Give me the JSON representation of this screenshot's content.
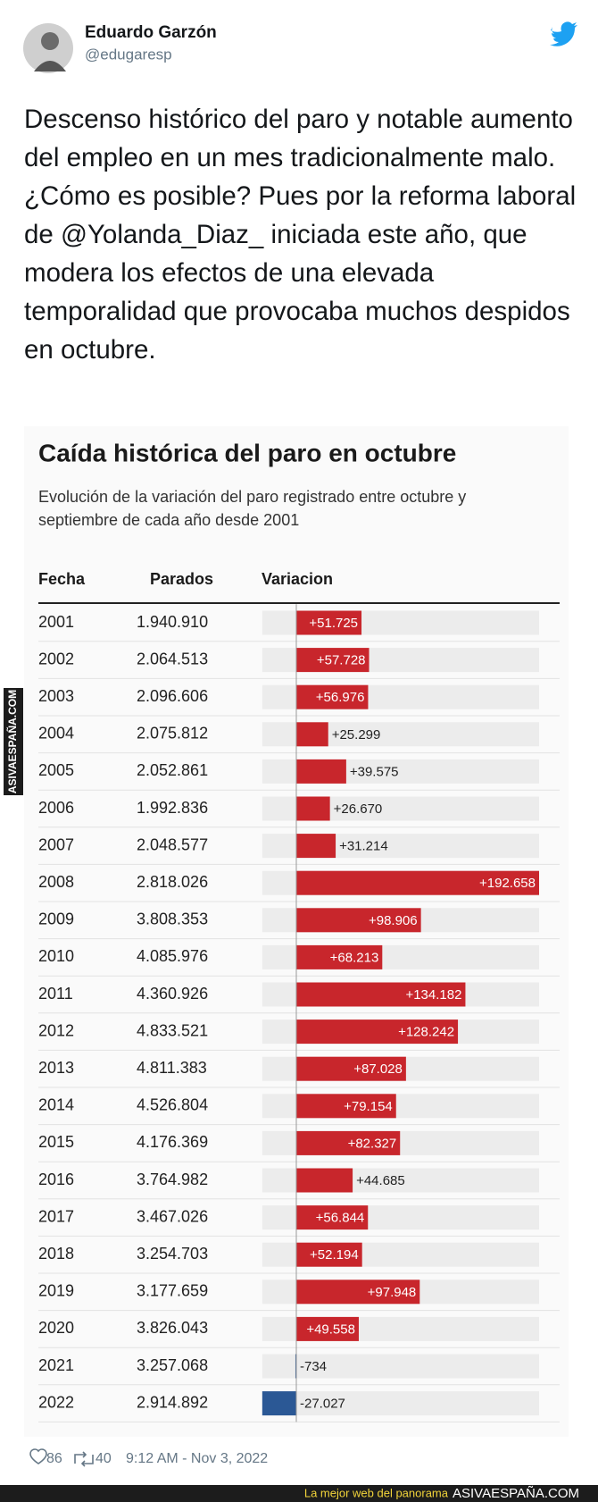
{
  "tweet": {
    "author": "Eduardo Garzón",
    "handle": "@edugaresp",
    "text": "Descenso histórico del paro y notable aumento del empleo en un mes tradicionalmente malo. ¿Cómo es posible? Pues por la reforma laboral de @Yolanda_Diaz_ iniciada este año, que modera los efectos de una elevada temporalidad que provocaba muchos despidos en octubre.",
    "likes": "86",
    "retweets": "40",
    "timestamp": "9:12 AM - Nov 3, 2022"
  },
  "chart_data": {
    "type": "table-bar",
    "title": "Caída histórica del paro en octubre",
    "subtitle_lines": [
      "Evolución de la variación del paro registrado entre octubre y",
      "septiembre de cada año desde 2001"
    ],
    "columns": [
      "Fecha",
      "Parados",
      "Variacion"
    ],
    "categories": [
      "2001",
      "2002",
      "2003",
      "2004",
      "2005",
      "2006",
      "2007",
      "2008",
      "2009",
      "2010",
      "2011",
      "2012",
      "2013",
      "2014",
      "2015",
      "2016",
      "2017",
      "2018",
      "2019",
      "2020",
      "2021",
      "2022"
    ],
    "parados": [
      "1.940.910",
      "2.064.513",
      "2.096.606",
      "2.075.812",
      "2.052.861",
      "1.992.836",
      "2.048.577",
      "2.818.026",
      "3.808.353",
      "4.085.976",
      "4.360.926",
      "4.833.521",
      "4.811.383",
      "4.526.804",
      "4.176.369",
      "3.764.982",
      "3.467.026",
      "3.254.703",
      "3.177.659",
      "3.826.043",
      "3.257.068",
      "2.914.892"
    ],
    "values": [
      51725,
      57728,
      56976,
      25299,
      39575,
      26670,
      31214,
      192658,
      98906,
      68213,
      134182,
      128242,
      87028,
      79154,
      82327,
      44685,
      56844,
      52194,
      97948,
      49558,
      -734,
      -27027
    ],
    "value_labels": [
      "+51.725",
      "+57.728",
      "+56.976",
      "+25.299",
      "+39.575",
      "+26.670",
      "+31.214",
      "+192.658",
      "+98.906",
      "+68.213",
      "+134.182",
      "+128.242",
      "+87.028",
      "+79.154",
      "+82.327",
      "+44.685",
      "+56.844",
      "+52.194",
      "+97.948",
      "+49.558",
      "-734",
      "-27.027"
    ],
    "colors": {
      "positive": "#c8262c",
      "negative": "#2b5895"
    }
  },
  "watermark": {
    "side": "ASIVAESPAÑA.COM",
    "footer_slogan": "La mejor web del panorama",
    "footer_site": "ASIVAESPAÑA.COM"
  }
}
